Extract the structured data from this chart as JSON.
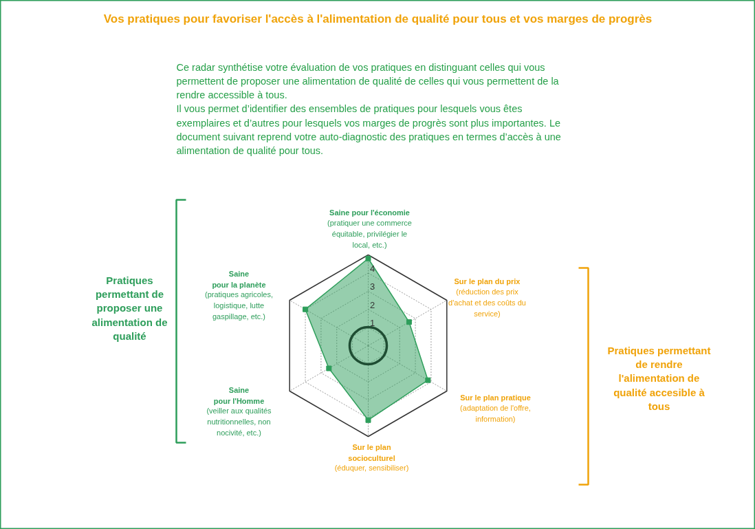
{
  "chart_data": {
    "type": "radar",
    "title": "Vos pratiques pour favoriser l'accès à l'alimentation de qualité pour tous et vos marges de progrès",
    "subtitle": "Ce radar synthétise votre évaluation de vos pratiques en distinguant celles qui vous\npermettent de proposer une alimentation de qualité de celles qui vous permettent de la\nrendre accessible à tous.\nIl vous permet d’identifier des ensembles de pratiques pour lesquels vous êtes\nexemplaires et d’autres pour lesquels vos marges de progrès sont plus importantes. Le\ndocument suivant reprend votre auto-diagnostic des pratiques en termes d’accès à une\nalimentation de qualité pour tous.",
    "categories": [
      "Saine pour l'économie\n(pratiquer une commerce\néquitable, privilégier le\nlocal, etc.)",
      "Sur le plan du prix\n(réduction des prix\nd'achat et des coûts du\nservice)",
      "Sur le plan pratique\n(adaptation de l'offre,\ninformation)",
      "Sur le plan\nsocioculturel\n(éduquer, sensibiliser)",
      "Saine\npour l'Homme\n(veiller aux qualités\nnutritionnelles, non\nnocivité, etc.)",
      "Saine\npour la planète\n(pratiques agricoles,\nlogistique, lutte\ngaspillage, etc.)"
    ],
    "series": [
      {
        "color": "#2e9e5b",
        "values": [
          4.8,
          2.6,
          3.8,
          4.1,
          2.5,
          4.0
        ]
      }
    ],
    "ylim": [
      0,
      5
    ],
    "yticks": [
      1,
      2,
      3,
      4
    ],
    "grid": true,
    "marker": "square",
    "annotations": [
      "Pratiques\npermettant de\nproposer une\nalimentation de\nqualité",
      "Pratiques permettant\nde rendre\nl'alimentation de\nqualité accesible à\ntous"
    ]
  }
}
